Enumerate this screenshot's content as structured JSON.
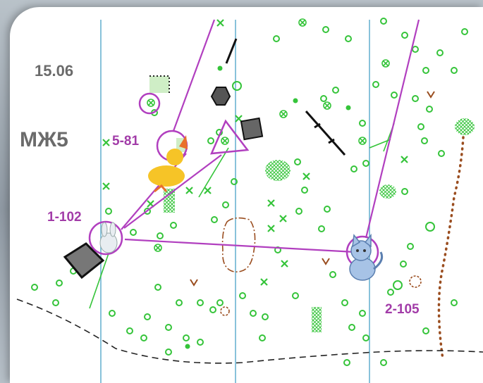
{
  "map": {
    "date": "15.06",
    "course_code": "МЖ5",
    "colors": {
      "course": "#b13fbf",
      "feature": "#35c43a",
      "meridian": "#6ab3d0",
      "path": "#000000",
      "dots": "#9a4d1f"
    },
    "controls": [
      {
        "label": "5-81",
        "icon": "duck-icon"
      },
      {
        "label": "1-102",
        "icon": "bunny-icon"
      },
      {
        "label": "2-105",
        "icon": "cat-icon"
      }
    ],
    "start": {
      "icon": "start-triangle-icon"
    }
  }
}
